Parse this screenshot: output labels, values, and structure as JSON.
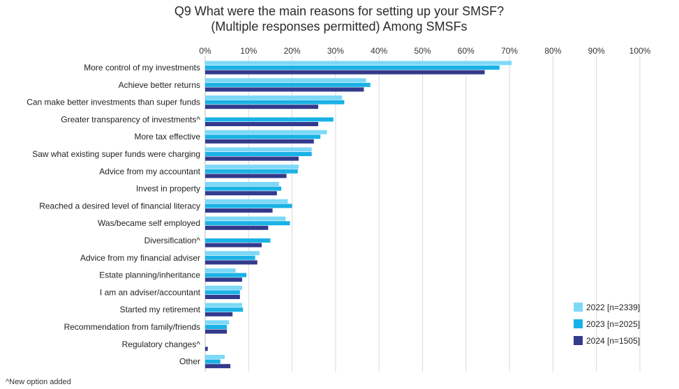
{
  "footnote": "^New option added",
  "chart_data": {
    "type": "bar",
    "orientation": "horizontal",
    "title": [
      "Q9 What were the main reasons for setting up your SMSF?",
      "(Multiple responses permitted) Among SMSFs"
    ],
    "xlim": [
      0,
      100
    ],
    "x_ticks": [
      "0%",
      "10%",
      "20%",
      "30%",
      "40%",
      "50%",
      "60%",
      "70%",
      "80%",
      "90%",
      "100%"
    ],
    "grid": true,
    "legend_position": "bottom-right",
    "categories": [
      "More control of my investments",
      "Achieve better returns",
      "Can make better investments than super funds",
      "Greater transparency of investments^",
      "More tax effective",
      "Saw what existing super funds were charging",
      "Advice from my accountant",
      "Invest in property",
      "Reached a desired level of financial literacy",
      "Was/became self employed",
      "Diversification^",
      "Advice from my financial adviser",
      "Estate planning/inheritance",
      "I am an adviser/accountant",
      "Started my retirement",
      "Recommendation from family/friends",
      "Regulatory changes^",
      "Other"
    ],
    "series": [
      {
        "name": "2022 [n=2339]",
        "color": "#7dd9f7",
        "values": [
          70.5,
          37,
          31.5,
          null,
          28,
          24.5,
          21.5,
          17,
          19,
          18.5,
          null,
          12.5,
          7,
          8.5,
          8.5,
          5.5,
          null,
          4.5
        ]
      },
      {
        "name": "2023 [n=2025]",
        "color": "#1ab2e6",
        "values": [
          67.7,
          38,
          32,
          29.5,
          26.5,
          24.5,
          21.3,
          17.5,
          20,
          19.5,
          15,
          11.5,
          9.5,
          8,
          8.7,
          5,
          null,
          3.5
        ]
      },
      {
        "name": "2024 [n=1505]",
        "color": "#333a8c",
        "values": [
          64.3,
          36.5,
          26,
          26,
          25,
          21.5,
          18.7,
          16.5,
          15.5,
          14.5,
          13,
          12,
          8.5,
          8,
          6.3,
          5,
          0.6,
          5.8
        ]
      }
    ]
  }
}
